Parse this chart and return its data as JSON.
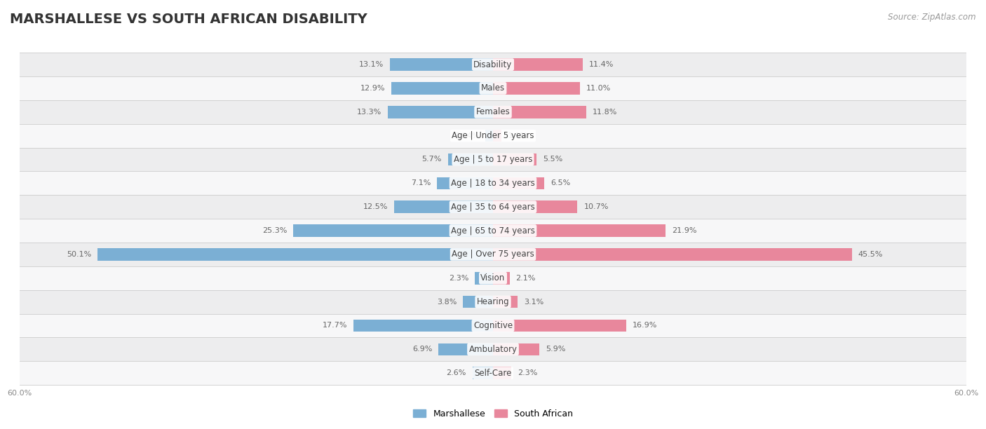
{
  "title": "MARSHALLESE VS SOUTH AFRICAN DISABILITY",
  "source": "Source: ZipAtlas.com",
  "categories": [
    "Disability",
    "Males",
    "Females",
    "Age | Under 5 years",
    "Age | 5 to 17 years",
    "Age | 18 to 34 years",
    "Age | 35 to 64 years",
    "Age | 65 to 74 years",
    "Age | Over 75 years",
    "Vision",
    "Hearing",
    "Cognitive",
    "Ambulatory",
    "Self-Care"
  ],
  "marshallese": [
    13.1,
    12.9,
    13.3,
    0.94,
    5.7,
    7.1,
    12.5,
    25.3,
    50.1,
    2.3,
    3.8,
    17.7,
    6.9,
    2.6
  ],
  "south_african": [
    11.4,
    11.0,
    11.8,
    1.1,
    5.5,
    6.5,
    10.7,
    21.9,
    45.5,
    2.1,
    3.1,
    16.9,
    5.9,
    2.3
  ],
  "marshallese_color": "#7bafd4",
  "south_african_color": "#e8879c",
  "marshallese_label": "Marshallese",
  "south_african_label": "South African",
  "x_max": 60.0,
  "row_bg_even": "#ededee",
  "row_bg_odd": "#f7f7f8",
  "bar_height": 0.52,
  "title_fontsize": 14,
  "label_fontsize": 8.5,
  "value_fontsize": 8,
  "legend_fontsize": 9,
  "source_fontsize": 8.5
}
